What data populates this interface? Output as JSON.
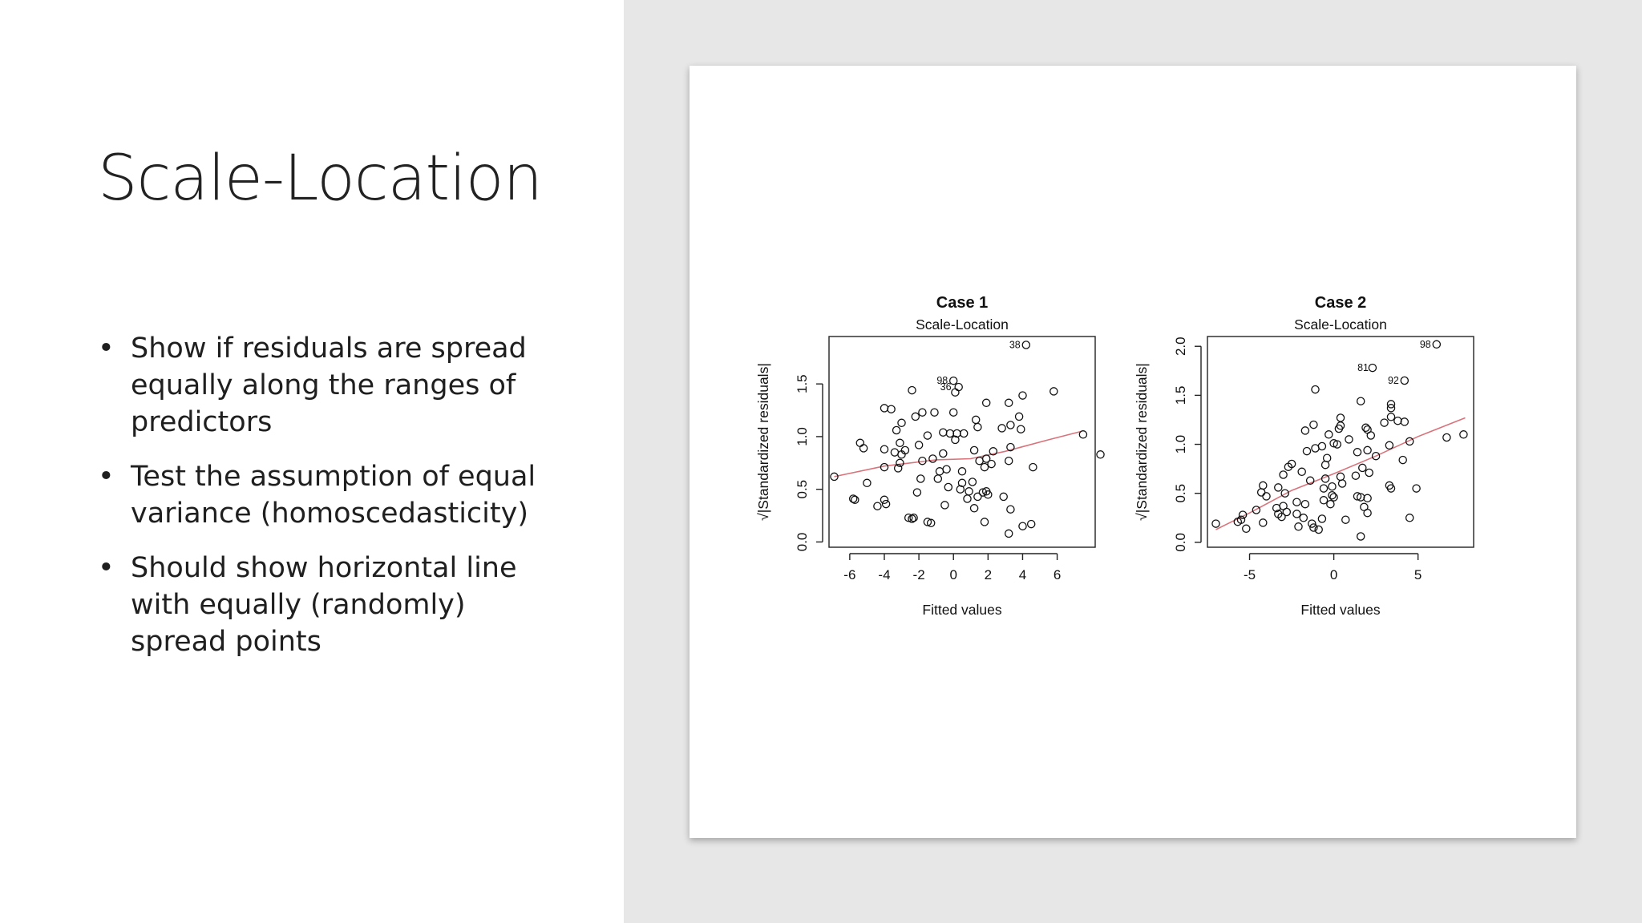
{
  "slide": {
    "title": "Scale-Location",
    "bullets": [
      "Show if residuals are spread equally along the ranges of predictors",
      "Test the assumption of equal variance (homoscedasticity)",
      "Should show horizontal line with equally (randomly) spread points"
    ]
  },
  "colors": {
    "background": "#ffffff",
    "right_panel": "#e7e7e7",
    "smoother_line": "#d9737b",
    "points": "#111111"
  },
  "chart_data": [
    {
      "type": "scatter",
      "title": "Case 1",
      "subtitle": "Scale-Location",
      "xlabel": "Fitted values",
      "ylabel": "√|Standardized residuals|",
      "xlim": [
        -7.2,
        8.2
      ],
      "ylim": [
        -0.05,
        1.95
      ],
      "xticks": [
        -6,
        -4,
        -2,
        0,
        2,
        4,
        6
      ],
      "xtick_labels": [
        "-6",
        "-4",
        "-2",
        "0",
        "2",
        "4",
        "6"
      ],
      "yticks": [
        0.0,
        0.5,
        1.0,
        1.5
      ],
      "ytick_labels": [
        "0.0",
        "0.5",
        "1.0",
        "1.5"
      ],
      "annotations": [
        {
          "label": "38",
          "x": 4.2,
          "y": 1.87
        },
        {
          "label": "98",
          "x": 0.0,
          "y": 1.53
        },
        {
          "label": "36",
          "x": 0.2,
          "y": 1.47
        }
      ],
      "smoother": [
        [
          -6.9,
          0.62
        ],
        [
          -4.0,
          0.72
        ],
        [
          -1.0,
          0.78
        ],
        [
          1.0,
          0.79
        ],
        [
          3.0,
          0.86
        ],
        [
          5.5,
          0.97
        ],
        [
          7.4,
          1.05
        ]
      ],
      "points": [
        [
          4.2,
          1.87
        ],
        [
          0.0,
          1.53
        ],
        [
          0.3,
          1.47
        ],
        [
          -2.4,
          1.44
        ],
        [
          0.1,
          1.42
        ],
        [
          5.8,
          1.43
        ],
        [
          4.0,
          1.39
        ],
        [
          -4.0,
          1.27
        ],
        [
          -3.6,
          1.26
        ],
        [
          1.9,
          1.32
        ],
        [
          3.2,
          1.32
        ],
        [
          -1.8,
          1.23
        ],
        [
          -1.1,
          1.23
        ],
        [
          0.0,
          1.23
        ],
        [
          -2.2,
          1.19
        ],
        [
          -3.0,
          1.13
        ],
        [
          3.8,
          1.19
        ],
        [
          1.3,
          1.16
        ],
        [
          3.3,
          1.11
        ],
        [
          1.4,
          1.09
        ],
        [
          2.8,
          1.08
        ],
        [
          -3.3,
          1.06
        ],
        [
          -0.6,
          1.04
        ],
        [
          0.2,
          1.03
        ],
        [
          0.6,
          1.03
        ],
        [
          -0.2,
          1.03
        ],
        [
          3.9,
          1.07
        ],
        [
          -1.5,
          1.01
        ],
        [
          7.5,
          1.02
        ],
        [
          0.1,
          0.97
        ],
        [
          -5.4,
          0.94
        ],
        [
          -3.1,
          0.94
        ],
        [
          -2.0,
          0.92
        ],
        [
          -5.2,
          0.89
        ],
        [
          -4.0,
          0.88
        ],
        [
          -2.8,
          0.87
        ],
        [
          -3.4,
          0.85
        ],
        [
          -3.0,
          0.83
        ],
        [
          1.2,
          0.87
        ],
        [
          2.3,
          0.86
        ],
        [
          -0.6,
          0.84
        ],
        [
          3.3,
          0.9
        ],
        [
          8.5,
          0.83
        ],
        [
          -1.8,
          0.77
        ],
        [
          -1.2,
          0.79
        ],
        [
          -3.1,
          0.75
        ],
        [
          1.9,
          0.79
        ],
        [
          2.2,
          0.74
        ],
        [
          1.5,
          0.77
        ],
        [
          3.2,
          0.77
        ],
        [
          -4.0,
          0.71
        ],
        [
          -3.2,
          0.7
        ],
        [
          -0.8,
          0.67
        ],
        [
          -0.4,
          0.69
        ],
        [
          0.5,
          0.67
        ],
        [
          1.8,
          0.71
        ],
        [
          4.6,
          0.71
        ],
        [
          -1.9,
          0.6
        ],
        [
          -0.9,
          0.6
        ],
        [
          0.5,
          0.56
        ],
        [
          1.1,
          0.57
        ],
        [
          -6.9,
          0.62
        ],
        [
          -5.0,
          0.56
        ],
        [
          -0.3,
          0.52
        ],
        [
          0.4,
          0.5
        ],
        [
          -2.1,
          0.47
        ],
        [
          0.9,
          0.48
        ],
        [
          1.7,
          0.47
        ],
        [
          1.9,
          0.48
        ],
        [
          1.4,
          0.43
        ],
        [
          2.0,
          0.45
        ],
        [
          -5.8,
          0.41
        ],
        [
          -5.7,
          0.4
        ],
        [
          -4.0,
          0.4
        ],
        [
          -4.4,
          0.34
        ],
        [
          -0.5,
          0.35
        ],
        [
          0.8,
          0.41
        ],
        [
          2.9,
          0.43
        ],
        [
          -3.9,
          0.36
        ],
        [
          1.2,
          0.32
        ],
        [
          3.3,
          0.31
        ],
        [
          -2.6,
          0.23
        ],
        [
          -2.3,
          0.23
        ],
        [
          -2.4,
          0.22
        ],
        [
          -1.5,
          0.19
        ],
        [
          -1.3,
          0.18
        ],
        [
          1.8,
          0.19
        ],
        [
          4.0,
          0.15
        ],
        [
          4.5,
          0.17
        ],
        [
          3.2,
          0.08
        ]
      ]
    },
    {
      "type": "scatter",
      "title": "Case 2",
      "subtitle": "Scale-Location",
      "xlabel": "Fitted values",
      "ylabel": "√|Standardized residuals|",
      "xlim": [
        -7.5,
        8.3
      ],
      "ylim": [
        -0.05,
        2.1
      ],
      "xticks": [
        -5,
        0,
        5
      ],
      "xtick_labels": [
        "-5",
        "0",
        "5"
      ],
      "yticks": [
        0.0,
        0.5,
        1.0,
        1.5,
        2.0
      ],
      "ytick_labels": [
        "0.0",
        "0.5",
        "1.0",
        "1.5",
        "2.0"
      ],
      "annotations": [
        {
          "label": "98",
          "x": 6.1,
          "y": 2.02
        },
        {
          "label": "81",
          "x": 2.4,
          "y": 1.78
        },
        {
          "label": "92",
          "x": 4.2,
          "y": 1.65
        }
      ],
      "smoother": [
        [
          -7.0,
          0.13
        ],
        [
          -5.0,
          0.3
        ],
        [
          -2.5,
          0.53
        ],
        [
          0.0,
          0.7
        ],
        [
          2.5,
          0.88
        ],
        [
          5.0,
          1.08
        ],
        [
          7.8,
          1.27
        ]
      ],
      "points": [
        [
          6.1,
          2.02
        ],
        [
          2.3,
          1.78
        ],
        [
          4.2,
          1.65
        ],
        [
          -1.1,
          1.56
        ],
        [
          1.6,
          1.44
        ],
        [
          3.4,
          1.41
        ],
        [
          3.4,
          1.37
        ],
        [
          3.4,
          1.28
        ],
        [
          3.8,
          1.24
        ],
        [
          4.2,
          1.23
        ],
        [
          0.4,
          1.27
        ],
        [
          -1.2,
          1.2
        ],
        [
          0.4,
          1.19
        ],
        [
          1.9,
          1.17
        ],
        [
          0.3,
          1.16
        ],
        [
          2.0,
          1.15
        ],
        [
          3.0,
          1.22
        ],
        [
          -1.7,
          1.14
        ],
        [
          -0.3,
          1.1
        ],
        [
          2.2,
          1.09
        ],
        [
          7.7,
          1.1
        ],
        [
          6.7,
          1.07
        ],
        [
          0.9,
          1.05
        ],
        [
          4.5,
          1.03
        ],
        [
          -0.7,
          0.98
        ],
        [
          -1.1,
          0.96
        ],
        [
          0.0,
          1.01
        ],
        [
          0.2,
          1.0
        ],
        [
          3.3,
          0.99
        ],
        [
          -1.6,
          0.93
        ],
        [
          1.4,
          0.92
        ],
        [
          2.0,
          0.94
        ],
        [
          2.5,
          0.88
        ],
        [
          4.1,
          0.84
        ],
        [
          -0.4,
          0.86
        ],
        [
          -2.5,
          0.8
        ],
        [
          -2.7,
          0.77
        ],
        [
          -0.5,
          0.79
        ],
        [
          1.7,
          0.76
        ],
        [
          -1.9,
          0.72
        ],
        [
          -3.0,
          0.69
        ],
        [
          1.3,
          0.68
        ],
        [
          2.1,
          0.71
        ],
        [
          0.4,
          0.67
        ],
        [
          -0.5,
          0.65
        ],
        [
          -1.4,
          0.63
        ],
        [
          -4.2,
          0.58
        ],
        [
          -3.3,
          0.56
        ],
        [
          0.5,
          0.6
        ],
        [
          -0.1,
          0.57
        ],
        [
          3.3,
          0.58
        ],
        [
          -0.6,
          0.55
        ],
        [
          3.4,
          0.55
        ],
        [
          4.9,
          0.55
        ],
        [
          -4.3,
          0.51
        ],
        [
          -2.9,
          0.5
        ],
        [
          -0.1,
          0.48
        ],
        [
          0.0,
          0.46
        ],
        [
          -4.0,
          0.47
        ],
        [
          1.4,
          0.47
        ],
        [
          1.6,
          0.46
        ],
        [
          2.0,
          0.45
        ],
        [
          -0.6,
          0.43
        ],
        [
          -2.2,
          0.41
        ],
        [
          -0.2,
          0.39
        ],
        [
          -1.7,
          0.39
        ],
        [
          -3.0,
          0.37
        ],
        [
          -3.4,
          0.35
        ],
        [
          1.8,
          0.36
        ],
        [
          -4.6,
          0.33
        ],
        [
          -2.8,
          0.31
        ],
        [
          -3.3,
          0.29
        ],
        [
          -2.2,
          0.29
        ],
        [
          2.0,
          0.3
        ],
        [
          -5.4,
          0.28
        ],
        [
          -3.1,
          0.26
        ],
        [
          -1.8,
          0.25
        ],
        [
          -0.7,
          0.24
        ],
        [
          0.7,
          0.23
        ],
        [
          4.5,
          0.25
        ],
        [
          -5.7,
          0.21
        ],
        [
          -5.5,
          0.23
        ],
        [
          -4.2,
          0.2
        ],
        [
          -1.3,
          0.19
        ],
        [
          -7.0,
          0.19
        ],
        [
          -5.2,
          0.14
        ],
        [
          -1.2,
          0.15
        ],
        [
          -2.1,
          0.16
        ],
        [
          -0.9,
          0.13
        ],
        [
          1.6,
          0.06
        ]
      ]
    }
  ]
}
